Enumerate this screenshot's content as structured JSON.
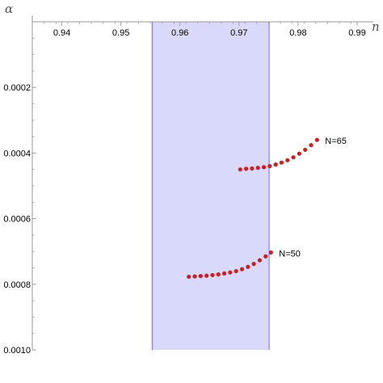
{
  "chart_data": {
    "type": "scatter",
    "title": "",
    "xlabel": "n",
    "ylabel": "α",
    "xlim": [
      0.935,
      0.99
    ],
    "ylim": [
      0.0,
      -0.001
    ],
    "y_axis_reversed": true,
    "x_axis_position": "top",
    "x_ticks": [
      0.94,
      0.95,
      0.96,
      0.97,
      0.98,
      0.99
    ],
    "x_tick_labels": [
      "0.94",
      "0.95",
      "0.96",
      "0.97",
      "0.98",
      "0.99"
    ],
    "y_ticks": [
      -0.0002,
      -0.0004,
      -0.0006,
      -0.0008,
      -0.001
    ],
    "y_tick_labels": [
      "0.0002",
      "0.0004",
      "0.0006",
      "0.0008",
      "0.0010"
    ],
    "grid": false,
    "band": {
      "x": [
        0.9553,
        0.9751
      ],
      "color": "#d9d9fb",
      "edge_color": "#8080e6"
    },
    "point_color": "#cc1f1f",
    "series": [
      {
        "name": "",
        "annotation": "N=65",
        "points": [
          [
            0.9702,
            -0.00045
          ],
          [
            0.9712,
            -0.000448
          ],
          [
            0.9722,
            -0.000447
          ],
          [
            0.9732,
            -0.000445
          ],
          [
            0.9742,
            -0.000443
          ],
          [
            0.9752,
            -0.00044
          ],
          [
            0.9762,
            -0.000435
          ],
          [
            0.9772,
            -0.000429
          ],
          [
            0.9782,
            -0.000422
          ],
          [
            0.9792,
            -0.000413
          ],
          [
            0.9802,
            -0.000402
          ],
          [
            0.9812,
            -0.00039
          ],
          [
            0.9822,
            -0.000376
          ],
          [
            0.9832,
            -0.00036
          ]
        ]
      },
      {
        "name": "",
        "annotation": "N=50",
        "points": [
          [
            0.9615,
            -0.000777
          ],
          [
            0.9625,
            -0.000776
          ],
          [
            0.9635,
            -0.000775
          ],
          [
            0.9645,
            -0.000774
          ],
          [
            0.9655,
            -0.000772
          ],
          [
            0.9665,
            -0.00077
          ],
          [
            0.9675,
            -0.000767
          ],
          [
            0.9685,
            -0.000764
          ],
          [
            0.9695,
            -0.00076
          ],
          [
            0.9705,
            -0.000754
          ],
          [
            0.9715,
            -0.000747
          ],
          [
            0.9725,
            -0.000738
          ],
          [
            0.9735,
            -0.000727
          ],
          [
            0.9745,
            -0.000715
          ],
          [
            0.9754,
            -0.000703
          ]
        ]
      }
    ]
  }
}
